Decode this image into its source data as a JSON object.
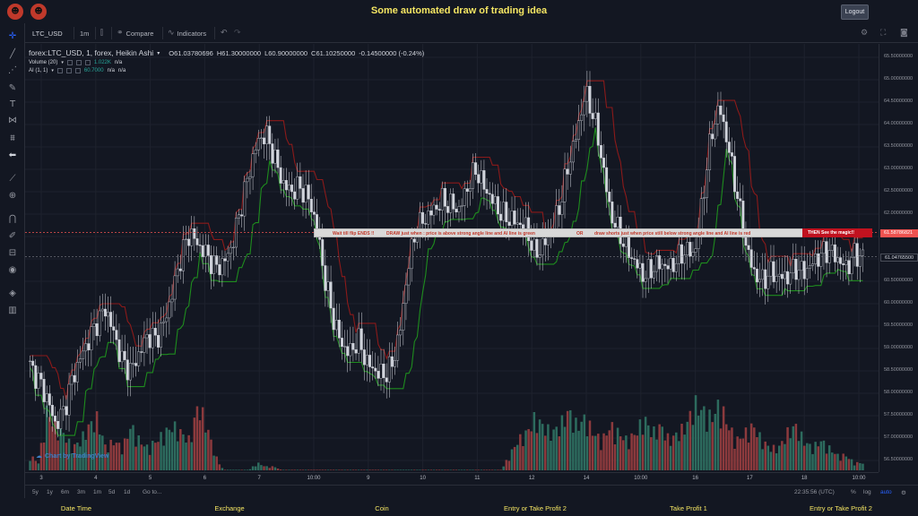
{
  "header": {
    "title": "Some automated draw of trading idea",
    "logout_label": "Logout",
    "logo_icons": [
      "mask-logo-icon",
      "mask-logo-icon"
    ]
  },
  "toolbar": {
    "symbol": "LTC_USD",
    "interval": "1m",
    "compare_label": "Compare",
    "indicators_label": "Indicators"
  },
  "legend": {
    "series_title": "forex:LTC_USD, 1, forex, Heikin Ashi",
    "o_label": "O",
    "o_value": "61.03780696",
    "h_label": "H",
    "h_value": "61.30000000",
    "l_label": "L",
    "l_value": "60.90000000",
    "c_label": "C",
    "c_value": "61.10250000",
    "change": "-0.14500000 (-0.24%)",
    "volume_label": "Volume (20)",
    "volume_value": "1.022K",
    "volume_na": "n/a",
    "ai_label": "AI (1, 1)",
    "ai_value": "60.7000",
    "ai_na1": "n/a",
    "ai_na2": "n/a"
  },
  "annotation": {
    "part1": "Wait till flip ENDS !!",
    "part2": "DRAW just when : price is above strong angle line and AI line is green",
    "part3": "OR",
    "part4": "draw shorts just when price still below strong angle line and AI line is red",
    "end_label": "THEN See the magic!!"
  },
  "watermark": "Chart by TradingView",
  "chart_data": {
    "type": "candlestick",
    "style": "Heikin Ashi",
    "y_ticks": [
      "65.50000000",
      "65.00000000",
      "64.50000000",
      "64.00000000",
      "63.50000000",
      "63.00000000",
      "62.50000000",
      "62.00000000",
      "61.50000000",
      "61.00000000",
      "60.50000000",
      "60.00000000",
      "59.50000000",
      "59.00000000",
      "58.50000000",
      "58.00000000",
      "57.50000000",
      "57.00000000",
      "56.50000000"
    ],
    "ylim": [
      56.4,
      65.6
    ],
    "marker_price_red": "61.58786821",
    "marker_price_current": "61.04765500",
    "x_ticks": [
      "3",
      "4",
      "5",
      "6",
      "7",
      "10:00",
      "9",
      "10",
      "11",
      "12",
      "14",
      "10:00",
      "16",
      "17",
      "18",
      "10:00"
    ],
    "close_series": [
      58.6,
      58.3,
      57.9,
      57.3,
      57.6,
      58.3,
      58.8,
      59.2,
      59.6,
      59.9,
      59.3,
      58.7,
      58.5,
      58.9,
      59.3,
      59.2,
      59.6,
      60.3,
      61.1,
      61.6,
      61.3,
      61.1,
      60.8,
      60.9,
      61.3,
      62.1,
      62.9,
      63.6,
      63.8,
      63.3,
      62.7,
      62.5,
      62.6,
      62.4,
      61.8,
      60.6,
      59.7,
      59.1,
      58.9,
      59.2,
      58.7,
      58.5,
      58.4,
      58.6,
      59.4,
      60.9,
      61.7,
      61.9,
      62.1,
      62.3,
      62.2,
      62.1,
      62.6,
      63.0,
      62.6,
      62.3,
      62.0,
      61.9,
      61.8,
      61.7,
      61.1,
      61.3,
      61.6,
      62.2,
      63.1,
      63.8,
      64.7,
      64.2,
      63.2,
      62.0,
      61.6,
      61.2,
      60.9,
      60.6,
      60.8,
      60.9,
      60.8,
      61.0,
      61.2,
      61.1,
      62.4,
      63.8,
      64.4,
      63.5,
      62.5,
      61.4,
      60.7,
      60.5,
      60.7,
      60.6,
      60.6,
      60.8,
      60.7,
      60.9,
      61.1,
      61.2,
      61.0,
      60.8,
      61.1,
      61.05
    ],
    "volume_values": [
      0.2,
      0.1,
      0.8,
      0.6,
      0.5,
      0.3,
      0.4,
      0.6,
      0.7,
      0.3,
      0.4,
      0.3,
      0.6,
      0.4,
      0.3,
      0.4,
      0.5,
      0.6,
      0.5,
      0.4,
      0.9,
      0.6,
      0.2,
      0.0,
      0.0,
      0.0,
      0.0,
      0.1,
      0.05,
      0.05,
      0.0,
      0.0,
      0.0,
      0.0,
      0.0,
      0.0,
      0.0,
      0.0,
      0.0,
      0.0,
      0.0,
      0.0,
      0.0,
      0.0,
      0.0,
      0.0,
      0.0,
      0.0,
      0.0,
      0.0,
      0.0,
      0.0,
      0.0,
      0.0,
      0.0,
      0.0,
      0.0,
      0.2,
      0.4,
      0.5,
      0.7,
      0.6,
      0.5,
      0.6,
      0.8,
      0.6,
      0.7,
      0.5,
      0.4,
      0.6,
      0.5,
      0.4,
      0.5,
      0.7,
      0.5,
      0.6,
      0.4,
      0.5,
      0.6,
      0.9,
      0.8,
      0.7,
      0.9,
      0.6,
      0.4,
      0.5,
      0.6,
      0.4,
      0.3,
      0.3,
      0.5,
      0.6,
      0.4,
      0.3,
      0.4,
      0.3,
      0.2,
      0.2,
      0.1,
      0.1
    ],
    "grid": true,
    "colors": {
      "up": "#26a69a",
      "down": "#ef5350",
      "ai_green": "#1e8c1e",
      "ai_red": "#8b1a1a",
      "wick": "#d1d4dc",
      "grid": "#1e222d"
    }
  },
  "yaxis_badges": {
    "red_value": "61.58786821",
    "current_value": "61.04765500"
  },
  "bottom": {
    "ranges": [
      "5y",
      "1y",
      "6m",
      "3m",
      "1m",
      "5d",
      "1d"
    ],
    "goto": "Go to...",
    "time": "22:35:56 (UTC)",
    "pct": "%",
    "log": "log",
    "auto": "auto"
  },
  "footer": {
    "items": [
      "Date Time",
      "Exchange",
      "Coin",
      "Entry or Take Profit 2",
      "Take Profit 1",
      "Entry or Take Profit 2"
    ]
  }
}
